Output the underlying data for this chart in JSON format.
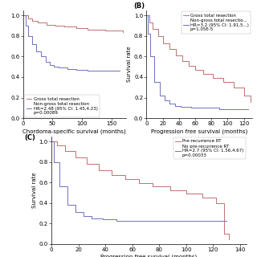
{
  "panel_A": {
    "label": "",
    "xlabel": "Chordoma-specific survival (months)",
    "ylabel": "",
    "xlim": [
      0,
      175
    ],
    "ylim": [
      0,
      1.05
    ],
    "xticks": [
      0,
      50,
      100,
      150
    ],
    "yticks": [
      0.0,
      0.2,
      0.4,
      0.6,
      0.8,
      1.0
    ],
    "line1_label": "Gross total resection",
    "line2_label": "Non-gross total resection\nHR=2.48 (95% CI: 1.45,4.23)\np=0.00089",
    "line1_color": "#c07070",
    "line2_color": "#7070c0",
    "line1_x": [
      0,
      8,
      15,
      25,
      40,
      55,
      70,
      90,
      110,
      140,
      170
    ],
    "line1_y": [
      1.0,
      0.97,
      0.95,
      0.93,
      0.91,
      0.9,
      0.89,
      0.88,
      0.86,
      0.85,
      0.84
    ],
    "line2_x": [
      0,
      4,
      8,
      15,
      22,
      30,
      38,
      46,
      52,
      60,
      75,
      90,
      110,
      140,
      165
    ],
    "line2_y": [
      1.0,
      0.9,
      0.8,
      0.72,
      0.65,
      0.6,
      0.55,
      0.52,
      0.5,
      0.49,
      0.48,
      0.47,
      0.46,
      0.46,
      0.46
    ],
    "legend_loc": "lower left"
  },
  "panel_B": {
    "label": "(B)",
    "xlabel": "Progression free survival (months)",
    "ylabel": "Survival rate",
    "xlim": [
      0,
      130
    ],
    "ylim": [
      0,
      1.05
    ],
    "xticks": [
      0,
      20,
      40,
      60,
      80,
      100,
      120
    ],
    "yticks": [
      0.0,
      0.2,
      0.4,
      0.6,
      0.8,
      1.0
    ],
    "line1_label": "Gross total resection",
    "line2_label": "Non-gross total resectio...\nHR=3.2 (95% CI: 1.91,5...)\np=1.05E-5",
    "line1_color": "#c07070",
    "line2_color": "#7070c0",
    "line1_x": [
      0,
      4,
      8,
      14,
      20,
      28,
      36,
      44,
      52,
      60,
      70,
      82,
      95,
      108,
      120,
      128
    ],
    "line1_y": [
      1.0,
      0.93,
      0.87,
      0.8,
      0.73,
      0.67,
      0.61,
      0.56,
      0.51,
      0.47,
      0.43,
      0.39,
      0.35,
      0.3,
      0.22,
      0.16
    ],
    "line2_x": [
      0,
      2,
      5,
      10,
      16,
      22,
      28,
      35,
      42,
      55,
      70,
      90,
      110,
      125
    ],
    "line2_y": [
      1.0,
      0.82,
      0.6,
      0.35,
      0.22,
      0.17,
      0.14,
      0.12,
      0.11,
      0.1,
      0.1,
      0.09,
      0.09,
      0.09
    ],
    "legend_loc": "upper right"
  },
  "panel_C": {
    "label": "(C)",
    "xlabel": "Progression free survival (months)",
    "ylabel": "Survival rate",
    "xlim": [
      0,
      145
    ],
    "ylim": [
      0,
      1.05
    ],
    "xticks": [
      0,
      20,
      40,
      60,
      80,
      100,
      120,
      140
    ],
    "yticks": [
      0.0,
      0.2,
      0.4,
      0.6,
      0.8,
      1.0
    ],
    "line1_label": "Pre-recurrence RT",
    "line2_label": "No pre-recurrence RT\nHR=2.7 (95% CI: 1.56,4.67)\np=0.00033",
    "line1_color": "#c07070",
    "line2_color": "#7070c0",
    "line1_x": [
      0,
      4,
      10,
      18,
      26,
      35,
      45,
      55,
      65,
      75,
      88,
      100,
      112,
      122,
      128,
      132
    ],
    "line1_y": [
      1.0,
      0.96,
      0.91,
      0.84,
      0.78,
      0.72,
      0.67,
      0.63,
      0.59,
      0.56,
      0.52,
      0.49,
      0.45,
      0.4,
      0.1,
      0.05
    ],
    "line2_x": [
      0,
      2,
      6,
      12,
      18,
      24,
      30,
      38,
      48,
      58,
      75,
      95,
      115,
      130
    ],
    "line2_y": [
      1.0,
      0.8,
      0.56,
      0.38,
      0.31,
      0.27,
      0.25,
      0.24,
      0.23,
      0.23,
      0.23,
      0.23,
      0.23,
      0.23
    ],
    "legend_loc": "upper right"
  },
  "bg_color": "#ffffff",
  "font_size": 5.0,
  "legend_font_size": 4.0,
  "tick_labelsize": 5.0
}
